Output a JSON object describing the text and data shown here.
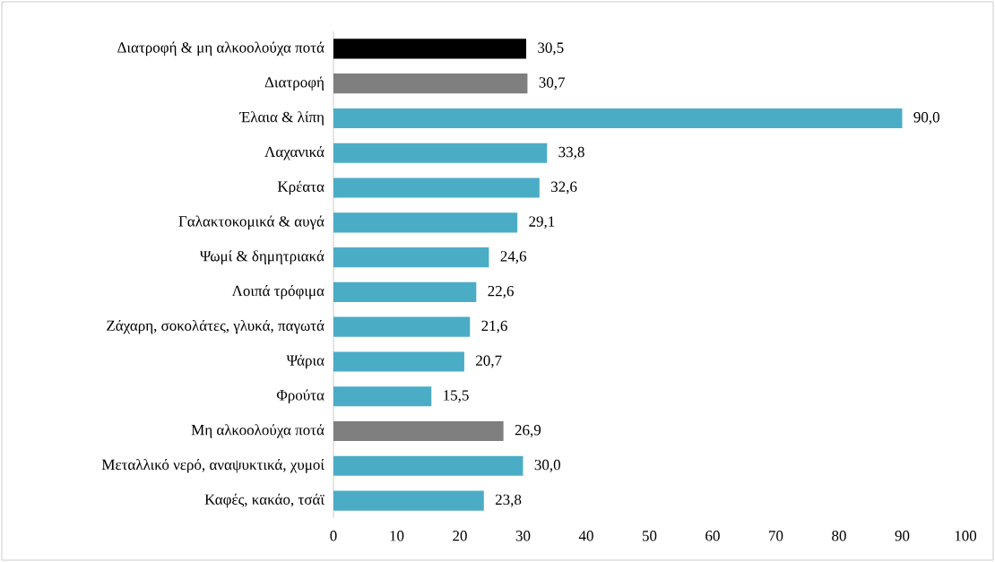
{
  "chart_data": {
    "type": "bar",
    "orientation": "horizontal",
    "categories": [
      "Διατροφή & μη αλκοολούχα ποτά",
      "Διατροφή",
      "Έλαια & λίπη",
      "Λαχανικά",
      "Κρέατα",
      "Γαλακτοκομικά & αυγά",
      "Ψωμί & δημητριακά",
      "Λοιπά τρόφιμα",
      "Ζάχαρη, σοκολάτες, γλυκά, παγωτά",
      "Ψάρια",
      "Φρούτα",
      "Μη αλκοολούχα ποτά",
      "Μεταλλικό νερό, αναψυκτικά, χυμοί",
      "Καφές, κακάο, τσάϊ"
    ],
    "values": [
      30.5,
      30.7,
      90.0,
      33.8,
      32.6,
      29.1,
      24.6,
      22.6,
      21.6,
      20.7,
      15.5,
      26.9,
      30.0,
      23.8
    ],
    "value_labels": [
      "30,5",
      "30,7",
      "90,0",
      "33,8",
      "32,6",
      "29,1",
      "24,6",
      "22,6",
      "21,6",
      "20,7",
      "15,5",
      "26,9",
      "30,0",
      "23,8"
    ],
    "colors": [
      "#000000",
      "#7f7f7f",
      "#4bacc6",
      "#4bacc6",
      "#4bacc6",
      "#4bacc6",
      "#4bacc6",
      "#4bacc6",
      "#4bacc6",
      "#4bacc6",
      "#4bacc6",
      "#7f7f7f",
      "#4bacc6",
      "#4bacc6"
    ],
    "xlim": [
      0,
      100
    ],
    "xticks": [
      0,
      10,
      20,
      30,
      40,
      50,
      60,
      70,
      80,
      90,
      100
    ]
  }
}
